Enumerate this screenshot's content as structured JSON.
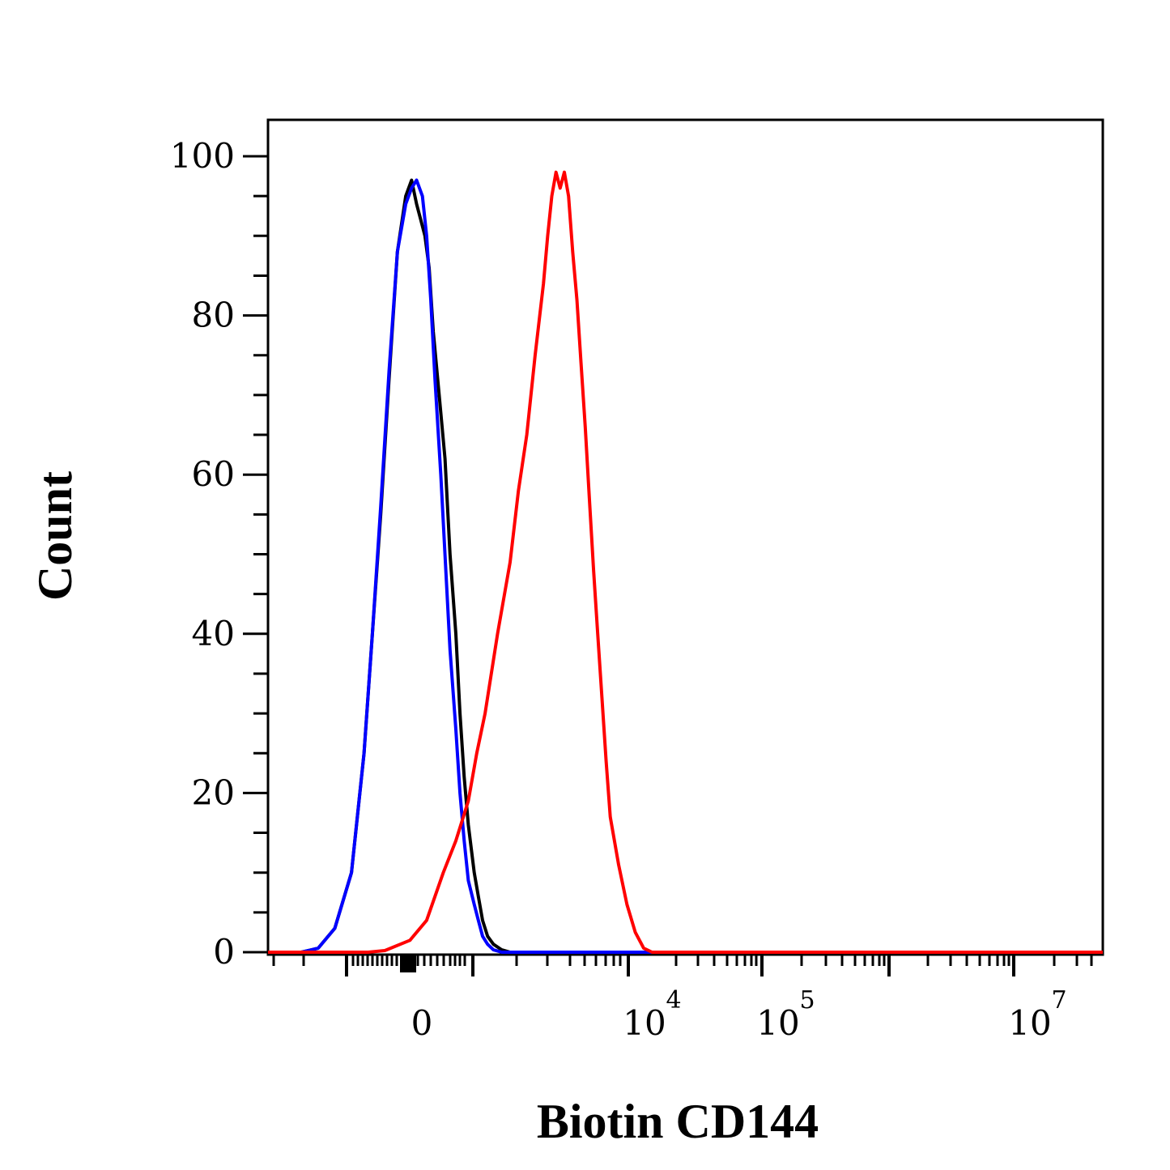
{
  "chart_data": {
    "type": "line",
    "title": "",
    "xlabel": "Biotin CD144",
    "ylabel": "Count",
    "ylim": [
      0,
      100
    ],
    "yticks": [
      "0",
      "20",
      "40",
      "60",
      "80",
      "100"
    ],
    "xscale": "biexponential",
    "xtick_labels": [
      {
        "base": "0",
        "exp": ""
      },
      {
        "base": "10",
        "exp": "4"
      },
      {
        "base": "10",
        "exp": "5"
      },
      {
        "base": "10",
        "exp": "7"
      }
    ],
    "x_note": "x values are relative channel positions (0 = left axis edge, 1 = right axis edge)",
    "grid": false,
    "legend": "none",
    "series": [
      {
        "color": "#000000",
        "x": [
          0.0,
          0.04,
          0.06,
          0.08,
          0.1,
          0.115,
          0.125,
          0.135,
          0.145,
          0.155,
          0.165,
          0.172,
          0.178,
          0.183,
          0.188,
          0.193,
          0.198,
          0.205,
          0.212,
          0.218,
          0.225,
          0.23,
          0.235,
          0.24,
          0.247,
          0.252,
          0.257,
          0.263,
          0.27,
          0.28,
          0.29,
          0.3,
          0.315,
          0.33,
          1.0
        ],
        "values": [
          0,
          0,
          0.5,
          3,
          10,
          25,
          40,
          55,
          72,
          88,
          95,
          97,
          94,
          92,
          90,
          86,
          78,
          70,
          62,
          50,
          40,
          30,
          22,
          16,
          10,
          7,
          4,
          2,
          1,
          0.3,
          0,
          0,
          0,
          0,
          0
        ]
      },
      {
        "color": "#0000ff",
        "x": [
          0.0,
          0.04,
          0.06,
          0.08,
          0.1,
          0.115,
          0.125,
          0.135,
          0.145,
          0.155,
          0.165,
          0.172,
          0.178,
          0.185,
          0.19,
          0.195,
          0.2,
          0.207,
          0.213,
          0.218,
          0.225,
          0.23,
          0.235,
          0.24,
          0.247,
          0.252,
          0.257,
          0.263,
          0.27,
          0.28,
          0.29,
          0.3,
          0.315,
          0.33,
          1.0
        ],
        "values": [
          0,
          0,
          0.5,
          3,
          10,
          25,
          40,
          56,
          73,
          88,
          94,
          96,
          97,
          95,
          90,
          82,
          72,
          60,
          48,
          38,
          28,
          20,
          14,
          9,
          6,
          4,
          2,
          1,
          0.3,
          0,
          0,
          0,
          0,
          0,
          0
        ]
      },
      {
        "color": "#ff0000",
        "x": [
          0.0,
          0.12,
          0.14,
          0.17,
          0.19,
          0.2,
          0.21,
          0.225,
          0.24,
          0.25,
          0.26,
          0.275,
          0.29,
          0.3,
          0.31,
          0.32,
          0.33,
          0.335,
          0.34,
          0.345,
          0.35,
          0.355,
          0.36,
          0.365,
          0.37,
          0.375,
          0.38,
          0.385,
          0.39,
          0.395,
          0.4,
          0.405,
          0.41,
          0.42,
          0.43,
          0.44,
          0.45,
          0.46,
          0.47,
          0.48,
          0.49,
          0.5,
          0.51,
          0.52,
          0.53,
          0.545,
          0.56,
          0.58,
          0.6,
          1.0
        ],
        "values": [
          0,
          0,
          0.2,
          1.5,
          4,
          7,
          10,
          14,
          19,
          25,
          30,
          40,
          49,
          58,
          65,
          75,
          84,
          90,
          95,
          98,
          96,
          98,
          95,
          88,
          82,
          74,
          66,
          57,
          48,
          40,
          32,
          24,
          17,
          11,
          6,
          2.5,
          0.5,
          0,
          0,
          0,
          0,
          0,
          0,
          0,
          0,
          0,
          0,
          0,
          0,
          0
        ]
      }
    ]
  }
}
